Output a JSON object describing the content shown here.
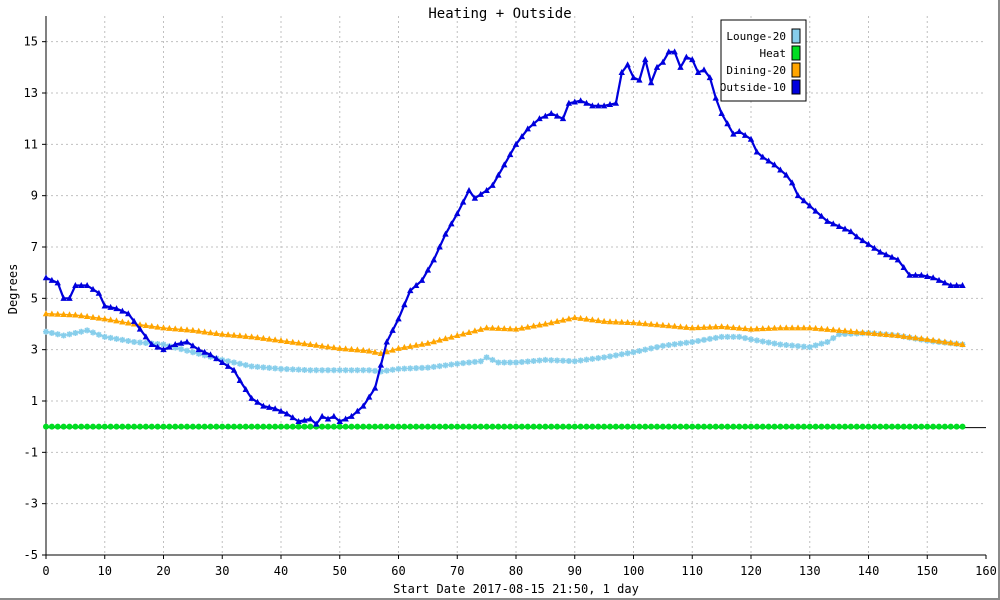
{
  "chart_data": {
    "type": "line",
    "title": "Heating + Outside",
    "xlabel": "Start Date 2017-08-15 21:50, 1 day",
    "ylabel": "Degrees",
    "xlim": [
      0,
      160
    ],
    "ylim": [
      -5,
      16
    ],
    "xticks": [
      0,
      10,
      20,
      30,
      40,
      50,
      60,
      70,
      80,
      90,
      100,
      110,
      120,
      130,
      140,
      150,
      160
    ],
    "yticks": [
      -5,
      -3,
      -1,
      1,
      3,
      5,
      7,
      9,
      11,
      13,
      15
    ],
    "x_tick_labels": [
      "0",
      "10",
      "20",
      "30",
      "40",
      "50",
      "60",
      "70",
      "80",
      "90",
      "100",
      "110",
      "120",
      "130",
      "140",
      "150",
      "160"
    ],
    "y_tick_labels": [
      "-5",
      "-3",
      "-1",
      "1",
      "3",
      "5",
      "7",
      "9",
      "11",
      "13",
      "15"
    ],
    "grid": true,
    "legend_position": "top-right",
    "series": [
      {
        "name": "Lounge-20",
        "color": "#87ceeb",
        "marker": "star",
        "points": [
          [
            0,
            3.7
          ],
          [
            3,
            3.55
          ],
          [
            7,
            3.75
          ],
          [
            10,
            3.5
          ],
          [
            15,
            3.3
          ],
          [
            20,
            3.2
          ],
          [
            25,
            2.9
          ],
          [
            30,
            2.6
          ],
          [
            35,
            2.35
          ],
          [
            40,
            2.25
          ],
          [
            45,
            2.2
          ],
          [
            50,
            2.2
          ],
          [
            55,
            2.2
          ],
          [
            57,
            2.15
          ],
          [
            60,
            2.25
          ],
          [
            65,
            2.3
          ],
          [
            70,
            2.45
          ],
          [
            74,
            2.55
          ],
          [
            75,
            2.7
          ],
          [
            77,
            2.5
          ],
          [
            80,
            2.5
          ],
          [
            85,
            2.6
          ],
          [
            90,
            2.55
          ],
          [
            95,
            2.7
          ],
          [
            100,
            2.9
          ],
          [
            105,
            3.15
          ],
          [
            110,
            3.3
          ],
          [
            115,
            3.5
          ],
          [
            118,
            3.5
          ],
          [
            120,
            3.4
          ],
          [
            125,
            3.2
          ],
          [
            130,
            3.1
          ],
          [
            133,
            3.3
          ],
          [
            135,
            3.6
          ],
          [
            140,
            3.65
          ],
          [
            145,
            3.55
          ],
          [
            150,
            3.35
          ],
          [
            156,
            3.2
          ]
        ]
      },
      {
        "name": "Heat",
        "color": "#00dd22",
        "marker": "circle",
        "points": [
          [
            0,
            0
          ],
          [
            156,
            0
          ]
        ]
      },
      {
        "name": "Dining-20",
        "color": "#ffa500",
        "marker": "triangle",
        "points": [
          [
            0,
            4.4
          ],
          [
            5,
            4.35
          ],
          [
            10,
            4.2
          ],
          [
            15,
            4.0
          ],
          [
            20,
            3.85
          ],
          [
            25,
            3.75
          ],
          [
            30,
            3.6
          ],
          [
            35,
            3.5
          ],
          [
            40,
            3.35
          ],
          [
            45,
            3.2
          ],
          [
            50,
            3.05
          ],
          [
            55,
            2.95
          ],
          [
            57,
            2.85
          ],
          [
            60,
            3.05
          ],
          [
            65,
            3.25
          ],
          [
            70,
            3.55
          ],
          [
            75,
            3.85
          ],
          [
            80,
            3.8
          ],
          [
            85,
            4.0
          ],
          [
            88,
            4.15
          ],
          [
            90,
            4.25
          ],
          [
            95,
            4.1
          ],
          [
            100,
            4.05
          ],
          [
            105,
            3.95
          ],
          [
            110,
            3.85
          ],
          [
            115,
            3.9
          ],
          [
            120,
            3.8
          ],
          [
            125,
            3.85
          ],
          [
            130,
            3.85
          ],
          [
            135,
            3.75
          ],
          [
            140,
            3.65
          ],
          [
            145,
            3.55
          ],
          [
            150,
            3.4
          ],
          [
            156,
            3.2
          ]
        ]
      },
      {
        "name": "Outside-10",
        "color": "#0000dd",
        "marker": "triangle",
        "points": [
          [
            0,
            5.8
          ],
          [
            2,
            5.6
          ],
          [
            3,
            5.0
          ],
          [
            4,
            5.0
          ],
          [
            5,
            5.5
          ],
          [
            7,
            5.5
          ],
          [
            9,
            5.2
          ],
          [
            10,
            4.7
          ],
          [
            12,
            4.6
          ],
          [
            14,
            4.4
          ],
          [
            16,
            3.8
          ],
          [
            18,
            3.2
          ],
          [
            20,
            3.0
          ],
          [
            22,
            3.2
          ],
          [
            24,
            3.3
          ],
          [
            26,
            3.0
          ],
          [
            28,
            2.8
          ],
          [
            30,
            2.5
          ],
          [
            32,
            2.2
          ],
          [
            33,
            1.8
          ],
          [
            35,
            1.1
          ],
          [
            37,
            0.8
          ],
          [
            39,
            0.7
          ],
          [
            41,
            0.5
          ],
          [
            43,
            0.2
          ],
          [
            45,
            0.3
          ],
          [
            46,
            0.1
          ],
          [
            47,
            0.4
          ],
          [
            48,
            0.3
          ],
          [
            49,
            0.4
          ],
          [
            50,
            0.2
          ],
          [
            52,
            0.4
          ],
          [
            54,
            0.8
          ],
          [
            56,
            1.5
          ],
          [
            57,
            2.4
          ],
          [
            58,
            3.3
          ],
          [
            60,
            4.2
          ],
          [
            62,
            5.3
          ],
          [
            64,
            5.7
          ],
          [
            66,
            6.5
          ],
          [
            68,
            7.5
          ],
          [
            70,
            8.3
          ],
          [
            72,
            9.2
          ],
          [
            73,
            8.9
          ],
          [
            75,
            9.2
          ],
          [
            76,
            9.4
          ],
          [
            78,
            10.2
          ],
          [
            80,
            11.0
          ],
          [
            82,
            11.6
          ],
          [
            84,
            12.0
          ],
          [
            86,
            12.2
          ],
          [
            88,
            12.0
          ],
          [
            89,
            12.6
          ],
          [
            91,
            12.7
          ],
          [
            93,
            12.5
          ],
          [
            95,
            12.5
          ],
          [
            97,
            12.6
          ],
          [
            98,
            13.8
          ],
          [
            99,
            14.1
          ],
          [
            100,
            13.6
          ],
          [
            101,
            13.5
          ],
          [
            102,
            14.3
          ],
          [
            103,
            13.4
          ],
          [
            104,
            14.0
          ],
          [
            105,
            14.2
          ],
          [
            106,
            14.6
          ],
          [
            107,
            14.6
          ],
          [
            108,
            14.0
          ],
          [
            109,
            14.4
          ],
          [
            110,
            14.3
          ],
          [
            111,
            13.8
          ],
          [
            112,
            13.9
          ],
          [
            113,
            13.6
          ],
          [
            114,
            12.8
          ],
          [
            115,
            12.2
          ],
          [
            117,
            11.4
          ],
          [
            118,
            11.5
          ],
          [
            120,
            11.2
          ],
          [
            121,
            10.7
          ],
          [
            122,
            10.5
          ],
          [
            124,
            10.2
          ],
          [
            126,
            9.8
          ],
          [
            127,
            9.5
          ],
          [
            128,
            9.0
          ],
          [
            130,
            8.6
          ],
          [
            132,
            8.2
          ],
          [
            133,
            8.0
          ],
          [
            135,
            7.8
          ],
          [
            137,
            7.6
          ],
          [
            138,
            7.4
          ],
          [
            140,
            7.1
          ],
          [
            142,
            6.8
          ],
          [
            145,
            6.5
          ],
          [
            146,
            6.2
          ],
          [
            147,
            5.9
          ],
          [
            149,
            5.9
          ],
          [
            151,
            5.8
          ],
          [
            153,
            5.6
          ],
          [
            154,
            5.5
          ],
          [
            156,
            5.5
          ]
        ]
      }
    ]
  }
}
